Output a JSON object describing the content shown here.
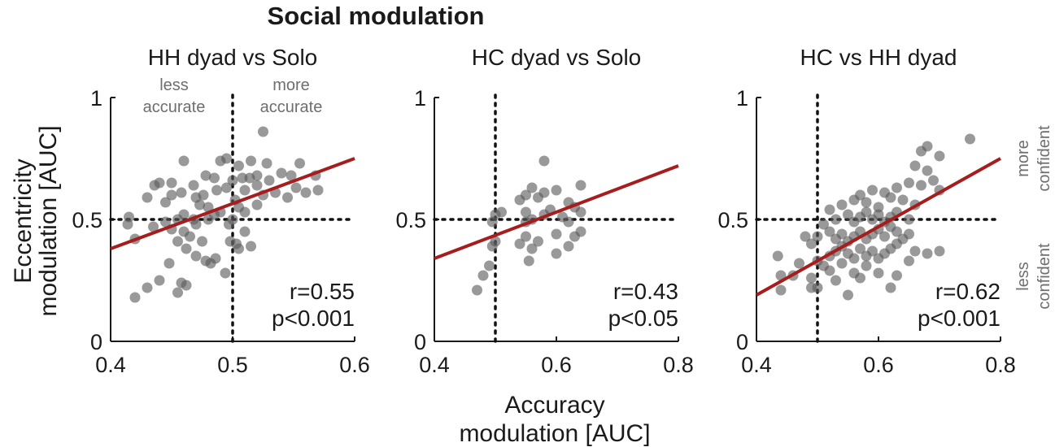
{
  "figure": {
    "title": "Social modulation",
    "ylabel_line1": "Eccentricity",
    "ylabel_line2": "modulation [AUC]",
    "xlabel_line1": "Accuracy",
    "xlabel_line2": "modulation [AUC]",
    "annot_less_accurate_1": "less",
    "annot_less_accurate_2": "accurate",
    "annot_more_accurate_1": "more",
    "annot_more_accurate_2": "accurate",
    "annot_more_confident_1": "more",
    "annot_more_confident_2": "confident",
    "annot_less_confident_1": "less",
    "annot_less_confident_2": "confident"
  },
  "colors": {
    "points": "#5a5a5a",
    "fit": "#a51d1d",
    "text": "#1a1a1a",
    "annotation": "#6e6e6e"
  },
  "chart_data": [
    {
      "type": "scatter",
      "title": "HH dyad vs Solo",
      "xlim": [
        0.4,
        0.6
      ],
      "ylim": [
        0,
        1
      ],
      "xticks": [
        "0.4",
        "0.5",
        "0.6"
      ],
      "yticks": [
        "0",
        "0.5",
        "1"
      ],
      "reference_lines": {
        "x": 0.5,
        "y": 0.5
      },
      "fit_line": [
        [
          0.4,
          0.38
        ],
        [
          0.6,
          0.75
        ]
      ],
      "stats": [
        "r=0.55",
        "p<0.001"
      ],
      "points": [
        [
          0.42,
          0.18
        ],
        [
          0.43,
          0.22
        ],
        [
          0.44,
          0.25
        ],
        [
          0.455,
          0.2
        ],
        [
          0.458,
          0.24
        ],
        [
          0.462,
          0.23
        ],
        [
          0.448,
          0.32
        ],
        [
          0.462,
          0.38
        ],
        [
          0.47,
          0.35
        ],
        [
          0.478,
          0.33
        ],
        [
          0.482,
          0.32
        ],
        [
          0.486,
          0.34
        ],
        [
          0.494,
          0.28
        ],
        [
          0.455,
          0.41
        ],
        [
          0.465,
          0.43
        ],
        [
          0.475,
          0.41
        ],
        [
          0.45,
          0.46
        ],
        [
          0.47,
          0.48
        ],
        [
          0.48,
          0.5
        ],
        [
          0.414,
          0.48
        ],
        [
          0.415,
          0.51
        ],
        [
          0.42,
          0.42
        ],
        [
          0.435,
          0.47
        ],
        [
          0.445,
          0.49
        ],
        [
          0.455,
          0.5
        ],
        [
          0.46,
          0.52
        ],
        [
          0.468,
          0.5
        ],
        [
          0.473,
          0.56
        ],
        [
          0.48,
          0.55
        ],
        [
          0.485,
          0.52
        ],
        [
          0.49,
          0.53
        ],
        [
          0.497,
          0.48
        ],
        [
          0.5,
          0.5
        ],
        [
          0.505,
          0.55
        ],
        [
          0.51,
          0.53
        ],
        [
          0.52,
          0.56
        ],
        [
          0.43,
          0.59
        ],
        [
          0.445,
          0.57
        ],
        [
          0.45,
          0.6
        ],
        [
          0.458,
          0.61
        ],
        [
          0.47,
          0.59
        ],
        [
          0.476,
          0.6
        ],
        [
          0.487,
          0.62
        ],
        [
          0.495,
          0.63
        ],
        [
          0.502,
          0.58
        ],
        [
          0.51,
          0.62
        ],
        [
          0.52,
          0.64
        ],
        [
          0.525,
          0.6
        ],
        [
          0.535,
          0.61
        ],
        [
          0.545,
          0.59
        ],
        [
          0.552,
          0.63
        ],
        [
          0.56,
          0.61
        ],
        [
          0.57,
          0.62
        ],
        [
          0.44,
          0.65
        ],
        [
          0.45,
          0.65
        ],
        [
          0.468,
          0.64
        ],
        [
          0.478,
          0.68
        ],
        [
          0.485,
          0.67
        ],
        [
          0.5,
          0.66
        ],
        [
          0.508,
          0.67
        ],
        [
          0.514,
          0.67
        ],
        [
          0.52,
          0.68
        ],
        [
          0.53,
          0.66
        ],
        [
          0.54,
          0.69
        ],
        [
          0.548,
          0.68
        ],
        [
          0.555,
          0.73
        ],
        [
          0.568,
          0.68
        ],
        [
          0.46,
          0.74
        ],
        [
          0.49,
          0.74
        ],
        [
          0.495,
          0.75
        ],
        [
          0.505,
          0.72
        ],
        [
          0.515,
          0.74
        ],
        [
          0.528,
          0.73
        ],
        [
          0.525,
          0.86
        ],
        [
          0.436,
          0.64
        ],
        [
          0.46,
          0.45
        ],
        [
          0.51,
          0.45
        ],
        [
          0.515,
          0.39
        ],
        [
          0.505,
          0.38
        ],
        [
          0.503,
          0.4
        ],
        [
          0.498,
          0.41
        ]
      ]
    },
    {
      "type": "scatter",
      "title": "HC dyad vs Solo",
      "xlim": [
        0.4,
        0.8
      ],
      "ylim": [
        0,
        1
      ],
      "xticks": [
        "0.4",
        "0.6",
        "0.8"
      ],
      "yticks": [
        "0",
        "0.5",
        "1"
      ],
      "reference_lines": {
        "x": 0.5,
        "y": 0.5
      },
      "fit_line": [
        [
          0.4,
          0.34
        ],
        [
          0.8,
          0.72
        ]
      ],
      "stats": [
        "r=0.43",
        "p<0.05"
      ],
      "points": [
        [
          0.47,
          0.21
        ],
        [
          0.48,
          0.27
        ],
        [
          0.49,
          0.31
        ],
        [
          0.495,
          0.39
        ],
        [
          0.5,
          0.41
        ],
        [
          0.495,
          0.49
        ],
        [
          0.5,
          0.52
        ],
        [
          0.51,
          0.53
        ],
        [
          0.54,
          0.4
        ],
        [
          0.55,
          0.43
        ],
        [
          0.56,
          0.38
        ],
        [
          0.555,
          0.33
        ],
        [
          0.57,
          0.41
        ],
        [
          0.6,
          0.36
        ],
        [
          0.6,
          0.44
        ],
        [
          0.62,
          0.39
        ],
        [
          0.63,
          0.43
        ],
        [
          0.64,
          0.45
        ],
        [
          0.55,
          0.49
        ],
        [
          0.56,
          0.5
        ],
        [
          0.58,
          0.52
        ],
        [
          0.59,
          0.54
        ],
        [
          0.61,
          0.51
        ],
        [
          0.62,
          0.49
        ],
        [
          0.63,
          0.55
        ],
        [
          0.64,
          0.53
        ],
        [
          0.54,
          0.58
        ],
        [
          0.55,
          0.6
        ],
        [
          0.56,
          0.63
        ],
        [
          0.57,
          0.59
        ],
        [
          0.58,
          0.61
        ],
        [
          0.6,
          0.62
        ],
        [
          0.62,
          0.57
        ],
        [
          0.64,
          0.64
        ],
        [
          0.58,
          0.74
        ],
        [
          0.55,
          0.53
        ]
      ]
    },
    {
      "type": "scatter",
      "title": "HC vs HH dyad",
      "xlim": [
        0.4,
        0.8
      ],
      "ylim": [
        0,
        1
      ],
      "xticks": [
        "0.4",
        "0.6",
        "0.8"
      ],
      "yticks": [
        "0",
        "0.5",
        "1"
      ],
      "reference_lines": {
        "x": 0.5,
        "y": 0.5
      },
      "fit_line": [
        [
          0.4,
          0.19
        ],
        [
          0.8,
          0.75
        ]
      ],
      "stats": [
        "r=0.62",
        "p<0.001"
      ],
      "points": [
        [
          0.44,
          0.21
        ],
        [
          0.44,
          0.27
        ],
        [
          0.435,
          0.35
        ],
        [
          0.46,
          0.27
        ],
        [
          0.49,
          0.22
        ],
        [
          0.5,
          0.22
        ],
        [
          0.49,
          0.26
        ],
        [
          0.5,
          0.33
        ],
        [
          0.51,
          0.31
        ],
        [
          0.52,
          0.29
        ],
        [
          0.53,
          0.25
        ],
        [
          0.54,
          0.32
        ],
        [
          0.55,
          0.19
        ],
        [
          0.56,
          0.28
        ],
        [
          0.57,
          0.26
        ],
        [
          0.58,
          0.31
        ],
        [
          0.6,
          0.28
        ],
        [
          0.62,
          0.22
        ],
        [
          0.63,
          0.27
        ],
        [
          0.65,
          0.33
        ],
        [
          0.66,
          0.37
        ],
        [
          0.68,
          0.36
        ],
        [
          0.7,
          0.37
        ],
        [
          0.52,
          0.35
        ],
        [
          0.53,
          0.37
        ],
        [
          0.54,
          0.39
        ],
        [
          0.55,
          0.36
        ],
        [
          0.56,
          0.34
        ],
        [
          0.57,
          0.38
        ],
        [
          0.58,
          0.35
        ],
        [
          0.59,
          0.37
        ],
        [
          0.6,
          0.34
        ],
        [
          0.61,
          0.36
        ],
        [
          0.62,
          0.38
        ],
        [
          0.63,
          0.4
        ],
        [
          0.49,
          0.4
        ],
        [
          0.5,
          0.43
        ],
        [
          0.52,
          0.45
        ],
        [
          0.53,
          0.42
        ],
        [
          0.54,
          0.44
        ],
        [
          0.55,
          0.41
        ],
        [
          0.56,
          0.43
        ],
        [
          0.57,
          0.45
        ],
        [
          0.58,
          0.42
        ],
        [
          0.59,
          0.44
        ],
        [
          0.6,
          0.46
        ],
        [
          0.61,
          0.43
        ],
        [
          0.62,
          0.47
        ],
        [
          0.63,
          0.45
        ],
        [
          0.64,
          0.42
        ],
        [
          0.65,
          0.44
        ],
        [
          0.53,
          0.5
        ],
        [
          0.55,
          0.52
        ],
        [
          0.56,
          0.49
        ],
        [
          0.57,
          0.51
        ],
        [
          0.58,
          0.53
        ],
        [
          0.59,
          0.5
        ],
        [
          0.6,
          0.52
        ],
        [
          0.61,
          0.49
        ],
        [
          0.62,
          0.51
        ],
        [
          0.63,
          0.53
        ],
        [
          0.65,
          0.5
        ],
        [
          0.52,
          0.54
        ],
        [
          0.54,
          0.56
        ],
        [
          0.56,
          0.58
        ],
        [
          0.58,
          0.57
        ],
        [
          0.6,
          0.55
        ],
        [
          0.62,
          0.59
        ],
        [
          0.64,
          0.58
        ],
        [
          0.66,
          0.56
        ],
        [
          0.57,
          0.6
        ],
        [
          0.59,
          0.62
        ],
        [
          0.61,
          0.61
        ],
        [
          0.63,
          0.63
        ],
        [
          0.65,
          0.65
        ],
        [
          0.67,
          0.64
        ],
        [
          0.69,
          0.66
        ],
        [
          0.66,
          0.72
        ],
        [
          0.68,
          0.7
        ],
        [
          0.7,
          0.76
        ],
        [
          0.67,
          0.78
        ],
        [
          0.68,
          0.8
        ],
        [
          0.75,
          0.83
        ],
        [
          0.7,
          0.62
        ],
        [
          0.51,
          0.48
        ],
        [
          0.48,
          0.43
        ],
        [
          0.47,
          0.32
        ]
      ]
    }
  ]
}
